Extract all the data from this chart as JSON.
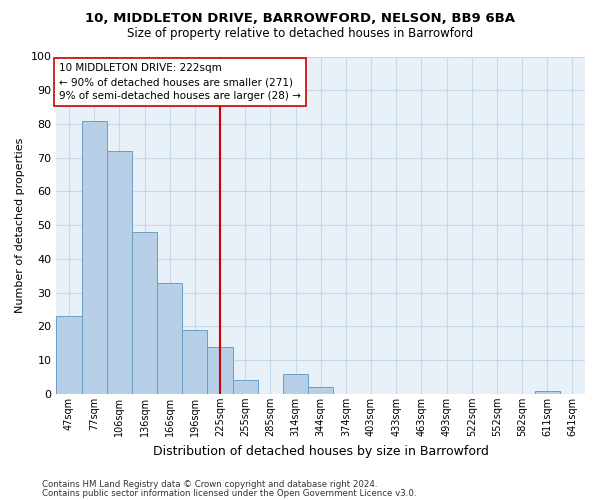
{
  "title1": "10, MIDDLETON DRIVE, BARROWFORD, NELSON, BB9 6BA",
  "title2": "Size of property relative to detached houses in Barrowford",
  "xlabel": "Distribution of detached houses by size in Barrowford",
  "ylabel": "Number of detached properties",
  "bar_labels": [
    "47sqm",
    "77sqm",
    "106sqm",
    "136sqm",
    "166sqm",
    "196sqm",
    "225sqm",
    "255sqm",
    "285sqm",
    "314sqm",
    "344sqm",
    "374sqm",
    "403sqm",
    "433sqm",
    "463sqm",
    "493sqm",
    "522sqm",
    "552sqm",
    "582sqm",
    "611sqm",
    "641sqm"
  ],
  "bar_values": [
    23,
    81,
    72,
    48,
    33,
    19,
    14,
    4,
    0,
    6,
    2,
    0,
    0,
    0,
    0,
    0,
    0,
    0,
    0,
    1,
    0
  ],
  "bar_color": "#b8cfe8",
  "bar_edge_color": "#6a9ec5",
  "property_line_x": 6,
  "property_line_color": "#cc0000",
  "annotation_line1": "10 MIDDLETON DRIVE: 222sqm",
  "annotation_line2": "← 90% of detached houses are smaller (271)",
  "annotation_line3": "9% of semi-detached houses are larger (28) →",
  "annotation_box_color": "#ffffff",
  "annotation_box_edge": "#cc0000",
  "ylim": [
    0,
    100
  ],
  "yticks": [
    0,
    10,
    20,
    30,
    40,
    50,
    60,
    70,
    80,
    90,
    100
  ],
  "grid_color": "#c8d8e8",
  "background_color": "#e8f0f8",
  "footer_line1": "Contains HM Land Registry data © Crown copyright and database right 2024.",
  "footer_line2": "Contains public sector information licensed under the Open Government Licence v3.0."
}
